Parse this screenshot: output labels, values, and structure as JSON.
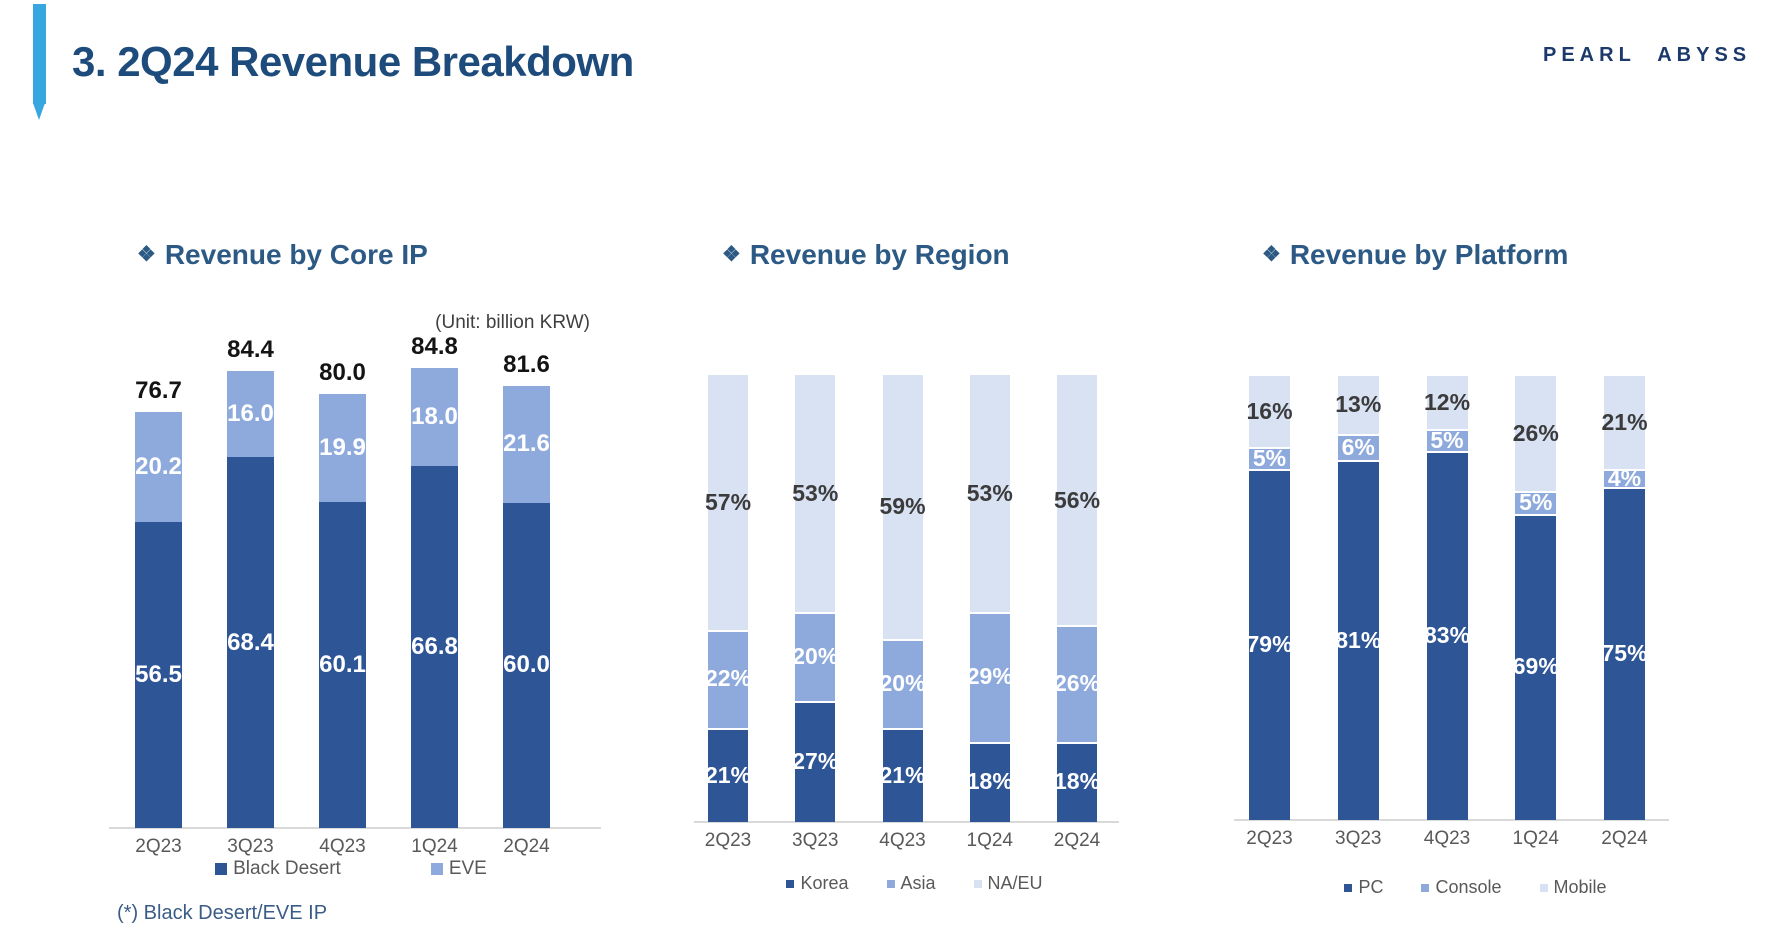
{
  "slide": {
    "title": "3. 2Q24 Revenue Breakdown",
    "logo": "PEARL ABYSS",
    "section_bullet": "❖",
    "footnote": "(*) Black Desert/EVE IP"
  },
  "colors": {
    "series_dark": "#2E5596",
    "series_medium": "#8EAADC",
    "series_light": "#D9E2F3",
    "accent_bar": "#38A6DF",
    "title_navy": "#1D4B7C",
    "chart_title_blue": "#2C5A85",
    "logo_navy": "#1B3A6B",
    "footnote_blue": "#3A5C87"
  },
  "chart_data": [
    {
      "type": "bar",
      "stacked": true,
      "title": "Revenue by Core IP",
      "unit_note": "(Unit: billion KRW)",
      "value_format": "number1",
      "legend_position": "bottom",
      "grid": false,
      "ylim": [
        0,
        90
      ],
      "categories": [
        "2Q23",
        "3Q23",
        "4Q23",
        "1Q24",
        "2Q24"
      ],
      "series": [
        {
          "name": "Black Desert",
          "color_key": "series_dark",
          "label_color": "#FFFFFF",
          "values": [
            56.5,
            68.4,
            60.1,
            66.8,
            60.0
          ]
        },
        {
          "name": "EVE",
          "color_key": "series_medium",
          "label_color": "#FFFFFF",
          "values": [
            20.2,
            16.0,
            19.9,
            18.0,
            21.6
          ]
        }
      ],
      "totals": [
        76.7,
        84.4,
        80.0,
        84.8,
        81.6
      ]
    },
    {
      "type": "bar",
      "stacked": true,
      "percent": true,
      "title": "Revenue by Region",
      "value_format": "percent",
      "legend_position": "bottom",
      "grid": false,
      "ylim": [
        0,
        100
      ],
      "categories": [
        "2Q23",
        "3Q23",
        "4Q23",
        "1Q24",
        "2Q24"
      ],
      "series": [
        {
          "name": "Korea",
          "color_key": "series_dark",
          "label_color": "#FFFFFF",
          "values": [
            21,
            27,
            21,
            18,
            18
          ]
        },
        {
          "name": "Asia",
          "color_key": "series_medium",
          "label_color": "#FFFFFF",
          "values": [
            22,
            20,
            20,
            29,
            26
          ]
        },
        {
          "name": "NA/EU",
          "color_key": "series_light",
          "label_color": "#3B3B3B",
          "values": [
            57,
            53,
            59,
            53,
            56
          ]
        }
      ]
    },
    {
      "type": "bar",
      "stacked": true,
      "percent": true,
      "title": "Revenue by Platform",
      "value_format": "percent",
      "legend_position": "bottom",
      "grid": false,
      "ylim": [
        0,
        100
      ],
      "categories": [
        "2Q23",
        "3Q23",
        "4Q23",
        "1Q24",
        "2Q24"
      ],
      "series": [
        {
          "name": "PC",
          "color_key": "series_dark",
          "label_color": "#FFFFFF",
          "values": [
            79,
            81,
            83,
            69,
            75
          ]
        },
        {
          "name": "Console",
          "color_key": "series_medium",
          "label_color": "#FFFFFF",
          "values": [
            5,
            6,
            5,
            5,
            4
          ]
        },
        {
          "name": "Mobile",
          "color_key": "series_light",
          "label_color": "#3B3B3B",
          "values": [
            16,
            13,
            12,
            26,
            21
          ]
        }
      ]
    }
  ]
}
